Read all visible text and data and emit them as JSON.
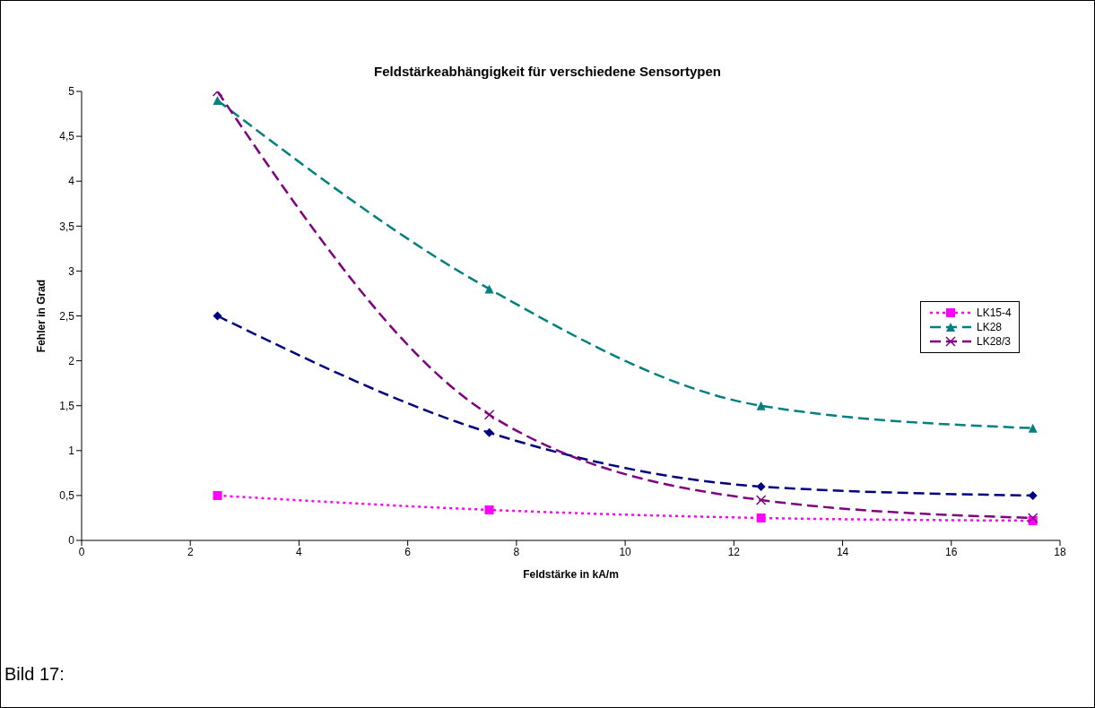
{
  "chart_data": {
    "type": "line",
    "title": "Feldstärkeabhängigkeit für verschiedene Sensortypen",
    "xlabel": "Feldstärke in kA/m",
    "ylabel": "Fehler in Grad",
    "annotations": [
      "Bild 17:"
    ],
    "x": [
      2.5,
      7.5,
      12.5,
      17.5
    ],
    "series": [
      {
        "color": "#000080",
        "values": [
          2.5,
          1.2,
          0.6,
          0.5
        ],
        "marker": "diamond",
        "line_style": "dashed"
      },
      {
        "name": "LK15-4",
        "color": "#ff00ff",
        "values": [
          0.5,
          0.34,
          0.25,
          0.22
        ],
        "marker": "square",
        "line_style": "dotted"
      },
      {
        "name": "LK28",
        "color": "#008080",
        "values": [
          4.9,
          2.8,
          1.5,
          1.25
        ],
        "marker": "triangle",
        "line_style": "dashed"
      },
      {
        "name": "LK28/3",
        "color": "#800080",
        "values": [
          5.0,
          1.4,
          0.45,
          0.25
        ],
        "marker": "cross",
        "line_style": "dashed"
      }
    ],
    "xlim": [
      0,
      18
    ],
    "xticks": [
      0,
      2,
      4,
      6,
      8,
      10,
      12,
      14,
      16,
      18
    ],
    "ylim": [
      0,
      5
    ],
    "yticks": [
      0,
      {
        "value": 0.5,
        "label": "0,5"
      },
      1,
      {
        "value": 1.5,
        "label": "1,5"
      },
      2,
      {
        "value": 2.5,
        "label": "2,5"
      },
      3,
      {
        "value": 3.5,
        "label": "3,5"
      },
      4,
      {
        "value": 4.5,
        "label": "4,5"
      },
      5
    ],
    "grid": false,
    "legend": "right"
  }
}
